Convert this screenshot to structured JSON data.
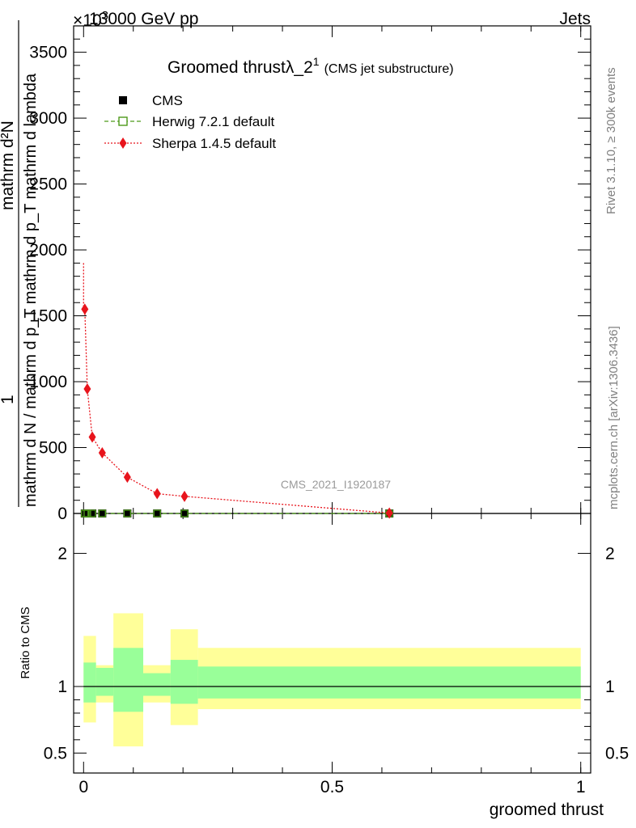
{
  "header": {
    "left": "13000 GeV pp",
    "right": "Jets",
    "exponent": "×10",
    "exponent_sup": "3"
  },
  "side_texts": {
    "rivet": "Rivet 3.1.10, ≥ 300k events",
    "mcplots": "mcplots.cern.ch [arXiv:1306.3436]"
  },
  "title": {
    "main": "Groomed thrustλ_2",
    "sup": "1",
    "sub": "(CMS jet substructure)"
  },
  "watermark": "CMS_2021_I1920187",
  "colors": {
    "cms": "#000000",
    "herwig": "#4d9a1a",
    "sherpa": "#e8141c",
    "band_inner": "#99ff99",
    "band_outer": "#ffff99"
  },
  "legend": [
    {
      "key": "cms",
      "label": "CMS"
    },
    {
      "key": "herwig",
      "label": "Herwig 7.2.1 default"
    },
    {
      "key": "sherpa",
      "label": "Sherpa 1.4.5 default"
    }
  ],
  "y_label_main": {
    "numerator_one": "1",
    "numerator": "mathrm d²N",
    "denominator": "mathrm d N / mathrm d p_T mathrm d p_T mathrm d lambda"
  },
  "y_label_ratio": "Ratio to CMS",
  "x_label": "groomed thrust",
  "chart_data": {
    "type": "line",
    "xlim": [
      -0.02,
      1.02
    ],
    "main": {
      "ylim": [
        0,
        3700
      ],
      "yticks": [
        0,
        500,
        1000,
        1500,
        2000,
        2500,
        3000,
        3500
      ],
      "ytick_labels": [
        "0",
        "500",
        "1000",
        "1500",
        "2000",
        "2500",
        "3000",
        "3500"
      ],
      "bins": [
        [
          0,
          0.005
        ],
        [
          0.005,
          0.01
        ],
        [
          0.01,
          0.025
        ],
        [
          0.025,
          0.05
        ],
        [
          0.05,
          0.12
        ],
        [
          0.12,
          0.18
        ],
        [
          0.18,
          0.23
        ],
        [
          0.23,
          1.0
        ]
      ],
      "cms": [
        {
          "x": 0.0025,
          "y": 0
        },
        {
          "x": 0.0075,
          "y": 0
        },
        {
          "x": 0.0175,
          "y": 0
        },
        {
          "x": 0.0375,
          "y": 0
        },
        {
          "x": 0.088,
          "y": 0
        },
        {
          "x": 0.148,
          "y": 0
        },
        {
          "x": 0.203,
          "y": 0
        },
        {
          "x": 0.615,
          "y": 0
        }
      ],
      "herwig": [
        {
          "x": 0.0025,
          "y": 0
        },
        {
          "x": 0.0075,
          "y": 0
        },
        {
          "x": 0.0175,
          "y": 0
        },
        {
          "x": 0.0375,
          "y": 0
        },
        {
          "x": 0.088,
          "y": 0
        },
        {
          "x": 0.148,
          "y": 0
        },
        {
          "x": 0.203,
          "y": 0
        },
        {
          "x": 0.615,
          "y": 0
        }
      ],
      "sherpa": [
        {
          "x": 0.0025,
          "y": 1550,
          "yerr": 40
        },
        {
          "x": 0.0075,
          "y": 945,
          "yerr": 30
        },
        {
          "x": 0.0175,
          "y": 580,
          "yerr": 25
        },
        {
          "x": 0.0375,
          "y": 460,
          "yerr": 25
        },
        {
          "x": 0.088,
          "y": 275,
          "yerr": 15
        },
        {
          "x": 0.148,
          "y": 150,
          "yerr": 10
        },
        {
          "x": 0.203,
          "y": 130,
          "yerr": 10
        },
        {
          "x": 0.615,
          "y": 3,
          "yerr": 1
        }
      ],
      "sherpa_spike": {
        "x": 0.0,
        "y_top": 1900
      }
    },
    "ratio": {
      "ylim": [
        0.35,
        2.3
      ],
      "yticks": [
        0.5,
        1,
        2
      ],
      "ytick_labels": [
        "0.5",
        "1",
        "2"
      ],
      "reference": 1,
      "bands": [
        {
          "x0": 0.0,
          "x1": 0.025,
          "inner": [
            0.88,
            1.18
          ],
          "outer": [
            0.73,
            1.38
          ]
        },
        {
          "x0": 0.025,
          "x1": 0.06,
          "inner": [
            0.93,
            1.14
          ],
          "outer": [
            0.88,
            1.16
          ]
        },
        {
          "x0": 0.06,
          "x1": 0.12,
          "inner": [
            0.81,
            1.29
          ],
          "outer": [
            0.55,
            1.55
          ]
        },
        {
          "x0": 0.12,
          "x1": 0.175,
          "inner": [
            0.93,
            1.1
          ],
          "outer": [
            0.88,
            1.16
          ]
        },
        {
          "x0": 0.175,
          "x1": 0.23,
          "inner": [
            0.87,
            1.2
          ],
          "outer": [
            0.71,
            1.43
          ]
        },
        {
          "x0": 0.23,
          "x1": 1.0,
          "inner": [
            0.91,
            1.15
          ],
          "outer": [
            0.83,
            1.29
          ]
        }
      ]
    },
    "xticks": [
      0,
      0.5,
      1
    ],
    "xtick_labels": [
      "0",
      "0.5",
      "1"
    ]
  }
}
